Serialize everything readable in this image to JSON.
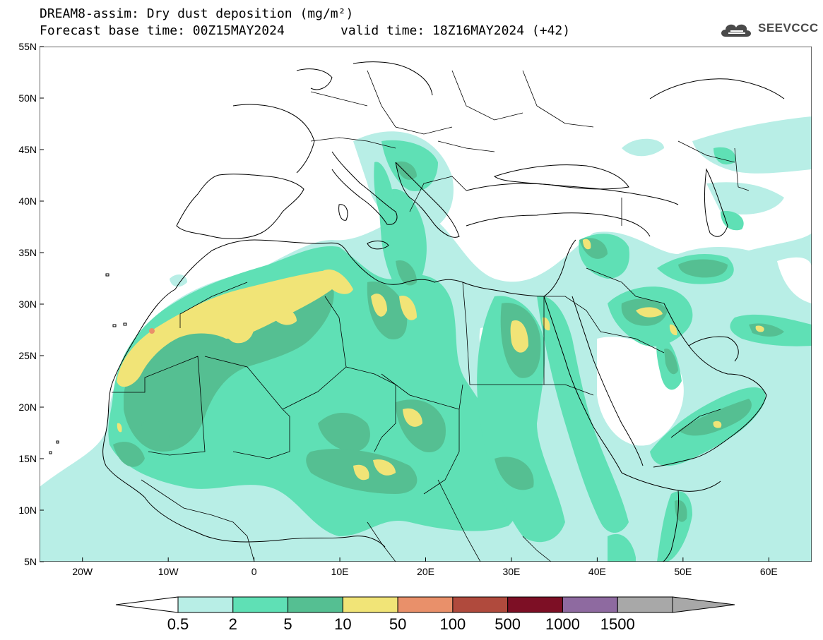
{
  "header": {
    "title": "DREAM8-assim: Dry dust deposition (mg/m²)",
    "base_time": "Forecast base time: 00Z15MAY2024",
    "valid_time": "valid time: 18Z16MAY2024 (+42)"
  },
  "logo": {
    "text": "SEEVCCC",
    "icon": "cloud-icon",
    "color": "#4a4a4a"
  },
  "map": {
    "lon_range": [
      -25,
      65
    ],
    "lat_range": [
      5,
      55
    ],
    "lon_ticks": [
      {
        "value": -20,
        "label": "20W"
      },
      {
        "value": -10,
        "label": "10W"
      },
      {
        "value": 0,
        "label": "0"
      },
      {
        "value": 10,
        "label": "10E"
      },
      {
        "value": 20,
        "label": "20E"
      },
      {
        "value": 30,
        "label": "30E"
      },
      {
        "value": 40,
        "label": "40E"
      },
      {
        "value": 50,
        "label": "50E"
      },
      {
        "value": 60,
        "label": "60E"
      }
    ],
    "lat_ticks": [
      {
        "value": 55,
        "label": "55N"
      },
      {
        "value": 50,
        "label": "50N"
      },
      {
        "value": 45,
        "label": "45N"
      },
      {
        "value": 40,
        "label": "40N"
      },
      {
        "value": 35,
        "label": "35N"
      },
      {
        "value": 30,
        "label": "30N"
      },
      {
        "value": 25,
        "label": "25N"
      },
      {
        "value": 20,
        "label": "20N"
      },
      {
        "value": 15,
        "label": "15N"
      },
      {
        "value": 10,
        "label": "10N"
      },
      {
        "value": 5,
        "label": "5N"
      }
    ]
  },
  "legend": {
    "levels": [
      "0.5",
      "2",
      "5",
      "10",
      "50",
      "100",
      "500",
      "1000",
      "1500"
    ],
    "colors": [
      "#b8eee6",
      "#5fe0b5",
      "#55bf92",
      "#f1e477",
      "#e9906a",
      "#b04a3d",
      "#7d0f25",
      "#8e6aa0",
      "#a8a8a8"
    ],
    "under_color": "#ffffff",
    "over_color": "#a8a8a8"
  }
}
